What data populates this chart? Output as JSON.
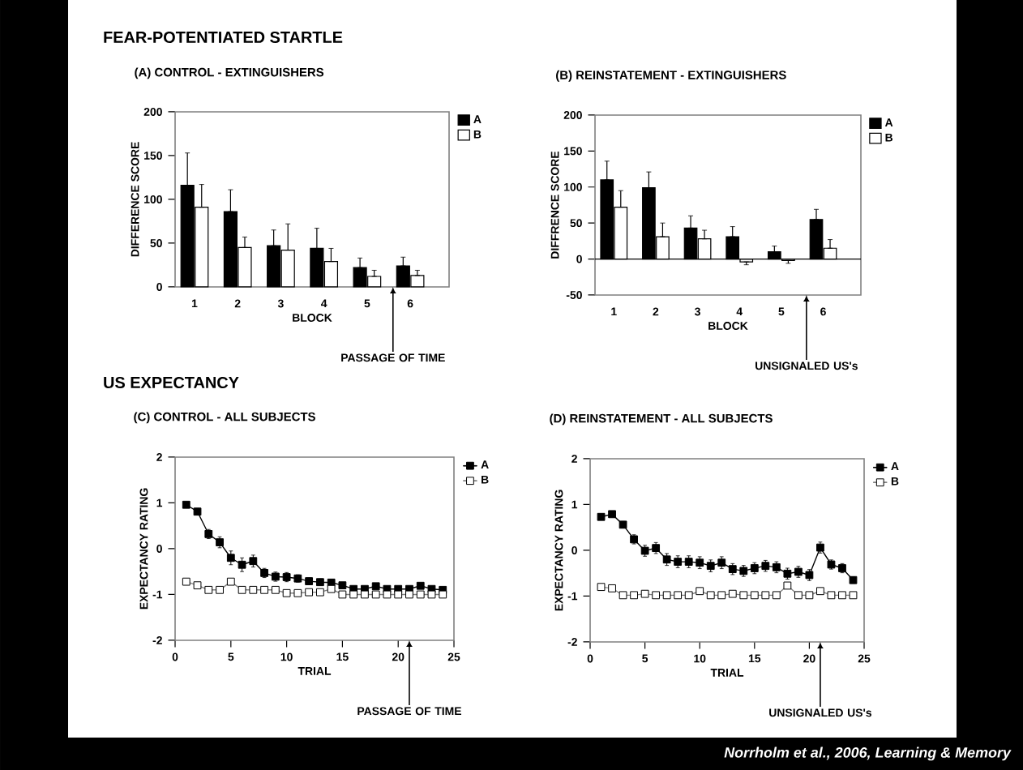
{
  "chart_data": [
    {
      "type": "bar",
      "title": "(A) CONTROL - EXTINGUISHERS",
      "xlabel": "BLOCK",
      "ylabel": "DIFFERENCE SCORE",
      "categories": [
        "1",
        "2",
        "3",
        "4",
        "5",
        "6"
      ],
      "ylim": [
        0,
        200
      ],
      "yticks": [
        0,
        50,
        100,
        150,
        200
      ],
      "legend": "top right",
      "series": [
        {
          "name": "A",
          "color": "#000000",
          "values": [
            116,
            86,
            47,
            44,
            22,
            24
          ],
          "errors": [
            [
              116,
              153
            ],
            [
              86,
              111
            ],
            [
              47,
              65
            ],
            [
              44,
              67
            ],
            [
              22,
              33
            ],
            [
              24,
              34
            ]
          ]
        },
        {
          "name": "B",
          "color": "#ffffff",
          "values": [
            91,
            45,
            42,
            29,
            12,
            13
          ],
          "errors": [
            [
              91,
              117
            ],
            [
              45,
              57
            ],
            [
              42,
              72
            ],
            [
              29,
              44
            ],
            [
              12,
              19
            ],
            [
              13,
              19
            ]
          ]
        }
      ],
      "annotations": [
        "FEAR-POTENTIATED STARTLE",
        {
          "text": "PASSAGE OF TIME"
        }
      ]
    },
    {
      "type": "bar",
      "title": "(B) REINSTATEMENT - EXTINGUISHERS",
      "xlabel": "BLOCK",
      "ylabel": "DIFFRENCE SCORE",
      "categories": [
        "1",
        "2",
        "3",
        "4",
        "5",
        "6"
      ],
      "ylim": [
        -50,
        200
      ],
      "yticks": [
        -50,
        0,
        50,
        100,
        150,
        200
      ],
      "legend": "top right",
      "series": [
        {
          "name": "A",
          "color": "#000000",
          "values": [
            110,
            99,
            43,
            31,
            10,
            55
          ],
          "errors": [
            [
              110,
              136
            ],
            [
              99,
              121
            ],
            [
              43,
              60
            ],
            [
              31,
              45
            ],
            [
              10,
              18
            ],
            [
              55,
              69
            ]
          ]
        },
        {
          "name": "B",
          "color": "#ffffff",
          "values": [
            72,
            31,
            28,
            -4,
            -2,
            15
          ],
          "errors": [
            [
              72,
              95
            ],
            [
              31,
              50
            ],
            [
              28,
              40
            ],
            [
              -8,
              -4
            ],
            [
              -6,
              -2
            ],
            [
              15,
              27
            ]
          ]
        }
      ],
      "annotations": [
        {
          "text": "UNSIGNALED US's"
        }
      ]
    },
    {
      "type": "line",
      "title": "(C) CONTROL - ALL SUBJECTS",
      "xlabel": "TRIAL",
      "ylabel": "EXPECTANCY RATING",
      "xlim": [
        0,
        25
      ],
      "xticks": [
        0,
        5,
        10,
        15,
        20,
        25
      ],
      "ylim": [
        -2,
        2
      ],
      "yticks": [
        -2,
        -1,
        0,
        1,
        2
      ],
      "legend": "top right",
      "marker": "square",
      "x": [
        1,
        2,
        3,
        4,
        5,
        6,
        7,
        8,
        9,
        10,
        11,
        12,
        13,
        14,
        15,
        16,
        17,
        18,
        19,
        20,
        21,
        22,
        23,
        24
      ],
      "series": [
        {
          "name": "A",
          "color": "#000000",
          "values": [
            0.96,
            0.81,
            0.32,
            0.14,
            -0.2,
            -0.35,
            -0.27,
            -0.53,
            -0.61,
            -0.62,
            -0.65,
            -0.71,
            -0.73,
            -0.74,
            -0.8,
            -0.88,
            -0.88,
            -0.82,
            -0.88,
            -0.88,
            -0.88,
            -0.81,
            -0.88,
            -0.9
          ],
          "errors": [
            0.05,
            0.07,
            0.1,
            0.12,
            0.15,
            0.15,
            0.13,
            0.1,
            0.1,
            0.1,
            0.08,
            0.07,
            0.07,
            0.06,
            0.06,
            0.05,
            0.05,
            0.05,
            0.05,
            0.05,
            0.05,
            0.05,
            0.05,
            0.05
          ]
        },
        {
          "name": "B",
          "color": "#ffffff",
          "values": [
            -0.72,
            -0.8,
            -0.9,
            -0.9,
            -0.72,
            -0.9,
            -0.9,
            -0.9,
            -0.9,
            -0.97,
            -0.97,
            -0.95,
            -0.95,
            -0.88,
            -1,
            -1,
            -1,
            -1,
            -1,
            -1,
            -1,
            -1,
            -1,
            -1
          ]
        }
      ],
      "annotations": [
        "US EXPECTANCY",
        {
          "text": "PASSAGE OF TIME",
          "x": 21
        }
      ]
    },
    {
      "type": "line",
      "title": "(D) REINSTATEMENT - ALL SUBJECTS",
      "xlabel": "TRIAL",
      "ylabel": "EXPECTANCY RATING",
      "xlim": [
        0,
        25
      ],
      "xticks": [
        0,
        5,
        10,
        15,
        20,
        25
      ],
      "ylim": [
        -2,
        2
      ],
      "yticks": [
        -2,
        -1,
        0,
        1,
        2
      ],
      "legend": "top right",
      "marker": "square",
      "x": [
        1,
        2,
        3,
        4,
        5,
        6,
        7,
        8,
        9,
        10,
        11,
        12,
        13,
        14,
        15,
        16,
        17,
        18,
        19,
        20,
        21,
        22,
        23,
        24
      ],
      "series": [
        {
          "name": "A",
          "color": "#000000",
          "values": [
            0.73,
            0.79,
            0.56,
            0.24,
            -0.01,
            0.05,
            -0.2,
            -0.25,
            -0.25,
            -0.27,
            -0.34,
            -0.27,
            -0.41,
            -0.45,
            -0.39,
            -0.34,
            -0.37,
            -0.51,
            -0.47,
            -0.54,
            0.06,
            -0.31,
            -0.39,
            -0.65
          ],
          "errors": [
            0.05,
            0.05,
            0.07,
            0.1,
            0.12,
            0.12,
            0.13,
            0.13,
            0.13,
            0.13,
            0.13,
            0.13,
            0.12,
            0.12,
            0.12,
            0.12,
            0.12,
            0.12,
            0.12,
            0.12,
            0.12,
            0.1,
            0.1,
            0.07
          ]
        },
        {
          "name": "B",
          "color": "#ffffff",
          "values": [
            -0.8,
            -0.83,
            -0.98,
            -0.98,
            -0.95,
            -0.98,
            -0.98,
            -0.98,
            -0.98,
            -0.89,
            -0.98,
            -0.98,
            -0.95,
            -0.98,
            -0.98,
            -0.98,
            -0.98,
            -0.77,
            -0.98,
            -0.98,
            -0.89,
            -0.98,
            -0.98,
            -0.98
          ]
        }
      ],
      "annotations": [
        {
          "text": "UNSIGNALED US's",
          "x": 21
        },
        "Norrholm et al., 2006, Learning & Memory"
      ]
    }
  ]
}
